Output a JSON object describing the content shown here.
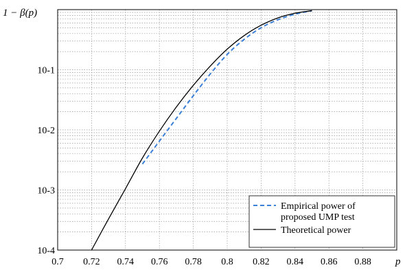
{
  "chart_data": {
    "type": "line",
    "title": "",
    "xlabel": "p",
    "ylabel": "1 − β(p)",
    "xlim": [
      0.7,
      0.9
    ],
    "ylim": [
      0.0001,
      1
    ],
    "yscale": "log",
    "grid": true,
    "x_ticks": [
      0.7,
      0.72,
      0.74,
      0.76,
      0.78,
      0.8,
      0.82,
      0.84,
      0.86,
      0.88
    ],
    "x_tick_labels": [
      "0.7",
      "0.72",
      "0.74",
      "0.76",
      "0.78",
      "0.8",
      "0.82",
      "0.84",
      "0.86",
      "0.88"
    ],
    "y_ticks": [
      0.0001,
      0.001,
      0.01,
      0.1
    ],
    "y_tick_labels": [
      {
        "base": "10",
        "exp": "-4"
      },
      {
        "base": "10",
        "exp": "-3"
      },
      {
        "base": "10",
        "exp": "-2"
      },
      {
        "base": "10",
        "exp": "-1"
      }
    ],
    "legend": {
      "position": "bottom-right",
      "entries": [
        {
          "series": 0,
          "lines": [
            "Empirical power of",
            "proposed UMP test"
          ]
        },
        {
          "series": 1,
          "lines": [
            "Theoretical power"
          ]
        }
      ]
    },
    "series": [
      {
        "name": "Empirical power of proposed UMP test",
        "color": "#3a7fd8",
        "dash": "dashed",
        "x": [
          0.75,
          0.76,
          0.77,
          0.78,
          0.79,
          0.8,
          0.81,
          0.82,
          0.83,
          0.84,
          0.85
        ],
        "y": [
          0.0027,
          0.0065,
          0.0155,
          0.037,
          0.085,
          0.18,
          0.32,
          0.5,
          0.68,
          0.84,
          0.96
        ]
      },
      {
        "name": "Theoretical power",
        "color": "#000000",
        "dash": "solid",
        "x": [
          0.72,
          0.73,
          0.74,
          0.75,
          0.76,
          0.77,
          0.78,
          0.79,
          0.8,
          0.81,
          0.82,
          0.83,
          0.84,
          0.85
        ],
        "y": [
          0.0001,
          0.00033,
          0.00105,
          0.0034,
          0.0095,
          0.024,
          0.055,
          0.115,
          0.22,
          0.37,
          0.55,
          0.73,
          0.87,
          0.96
        ]
      }
    ]
  }
}
